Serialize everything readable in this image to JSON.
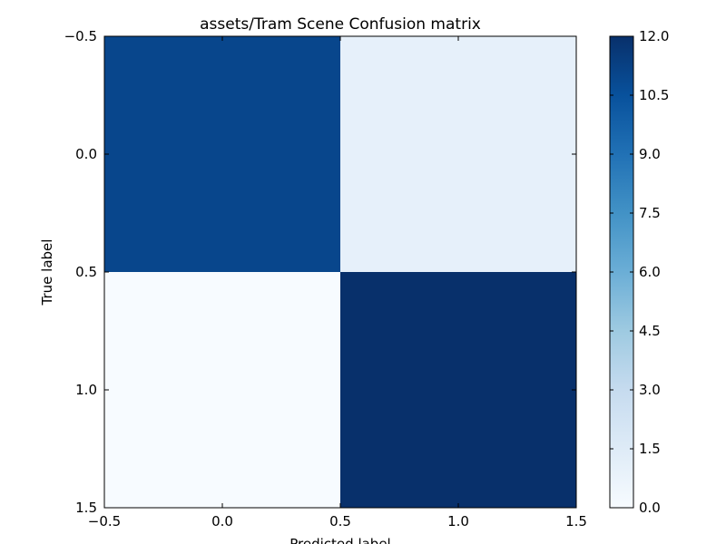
{
  "chart_data": {
    "type": "heatmap",
    "title": "assets/Tram Scene Confusion matrix",
    "xlabel": "Predicted label",
    "ylabel": "True label",
    "xlim": [
      -0.5,
      1.5
    ],
    "ylim": [
      -0.5,
      1.5
    ],
    "x_ticks": [
      "−0.5",
      "0.0",
      "0.5",
      "1.0",
      "1.5"
    ],
    "y_ticks": [
      "−0.5",
      "0.0",
      "0.5",
      "1.0",
      "1.5"
    ],
    "matrix": [
      [
        11,
        1
      ],
      [
        0,
        12
      ]
    ],
    "colormap": "Blues",
    "vmin": 0,
    "vmax": 12,
    "colorbar_ticks": [
      "0.0",
      "1.5",
      "3.0",
      "4.5",
      "6.0",
      "7.5",
      "9.0",
      "10.5",
      "12.0"
    ],
    "grid": false
  }
}
